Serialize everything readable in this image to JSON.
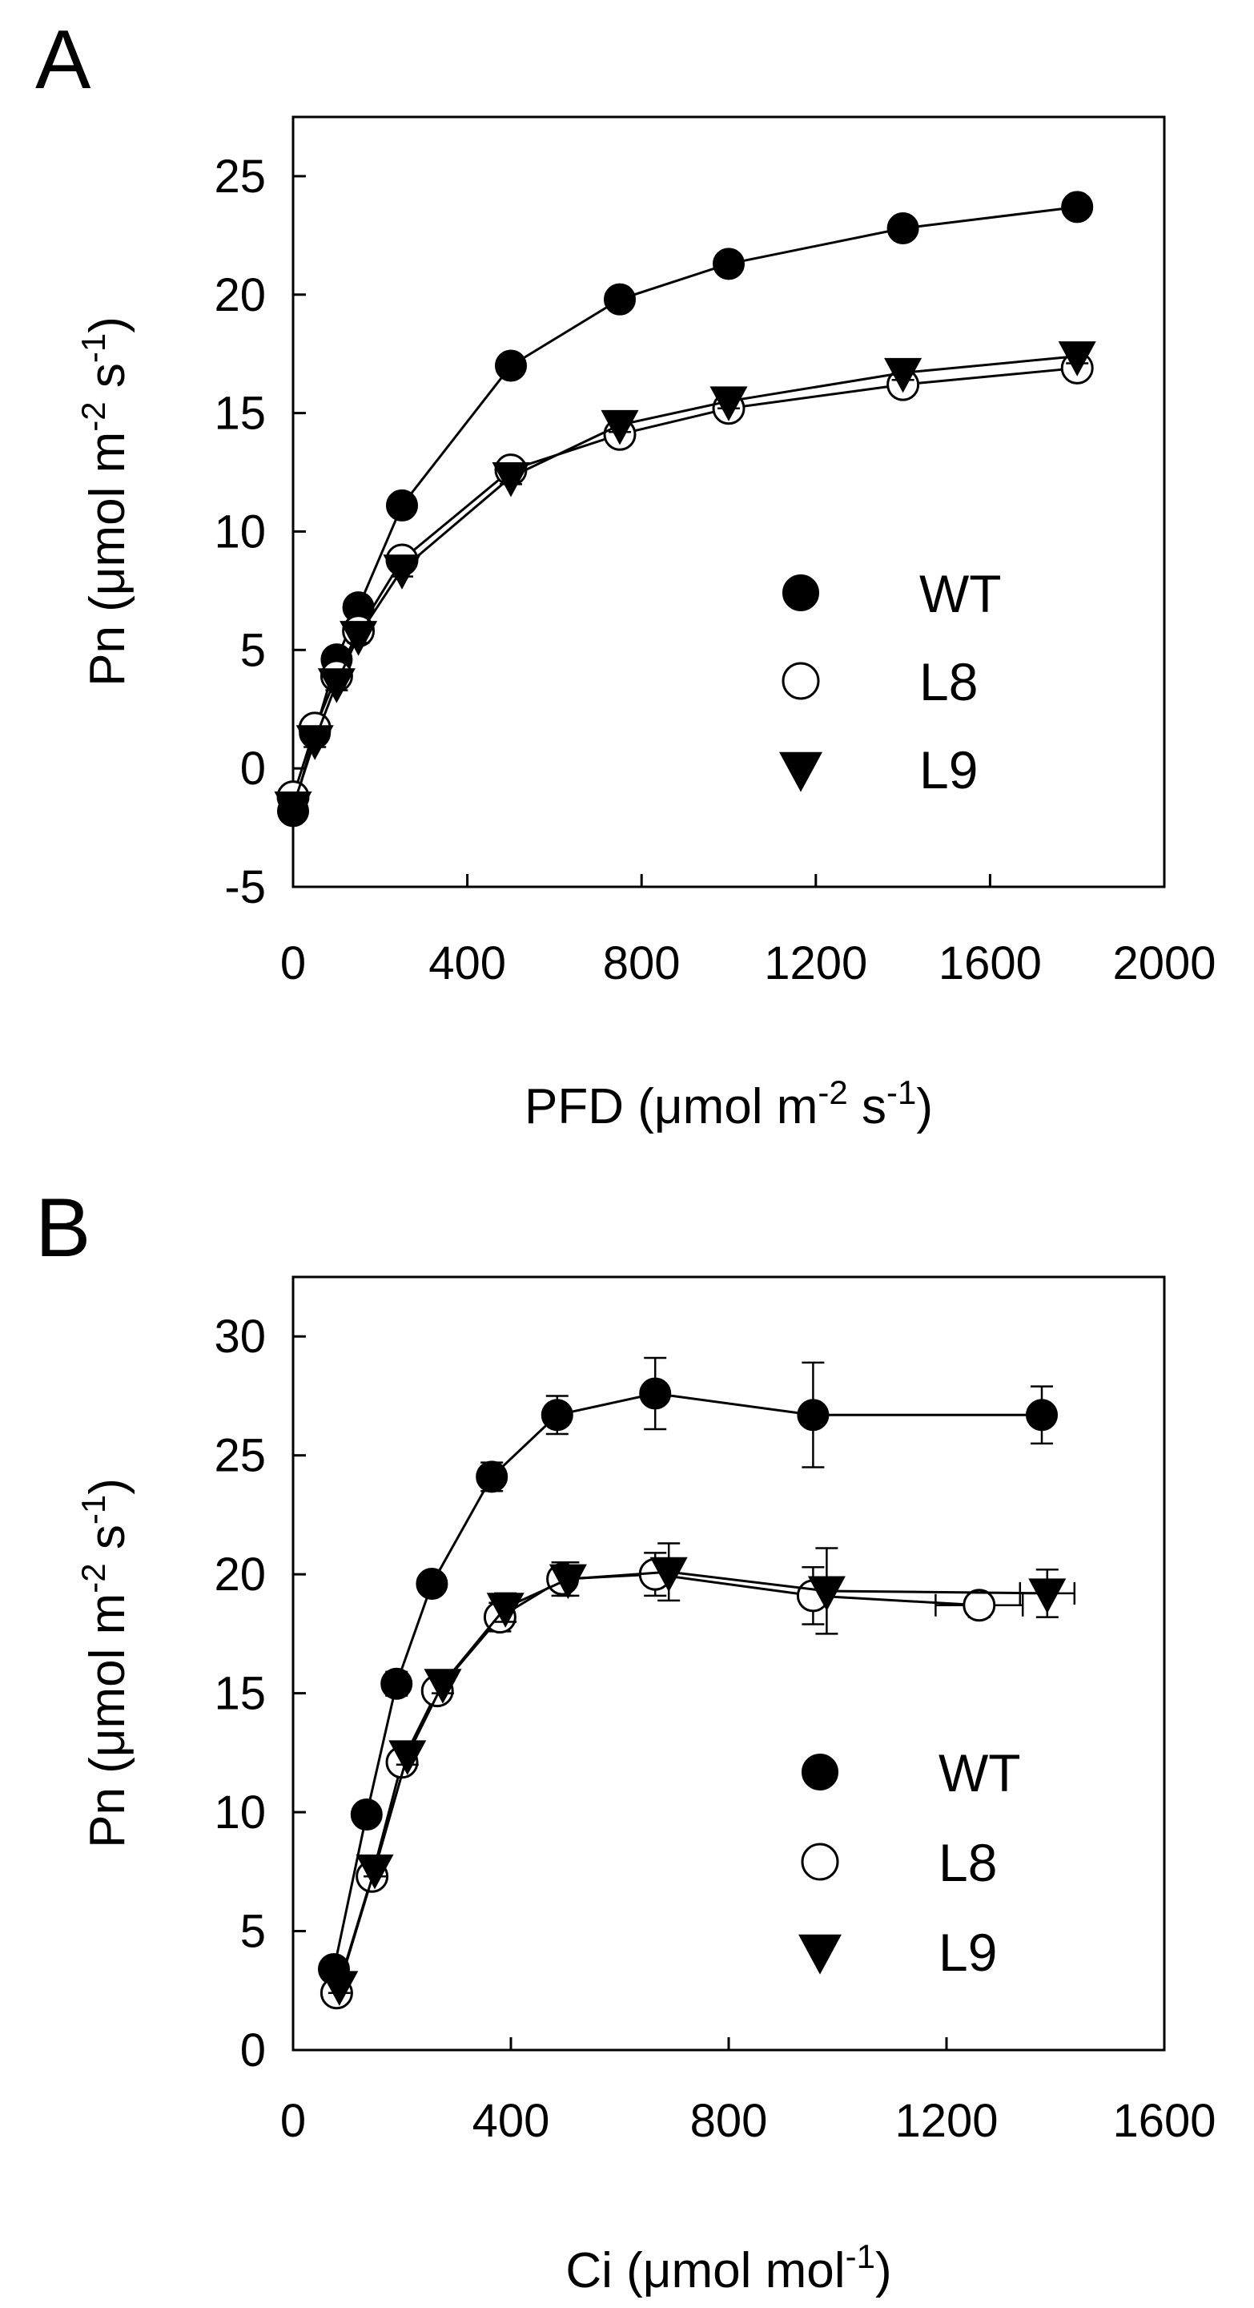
{
  "chart_data": [
    {
      "panel_label": "A",
      "type": "line",
      "xlabel": {
        "main": "PFD (μmol m",
        "sup1": "-2",
        "mid": " s",
        "sup2": "-1",
        "end": ")"
      },
      "ylabel": {
        "main": "Pn (μmol m",
        "sup1": "-2",
        "mid": " s",
        "sup2": "-1",
        "end": ")"
      },
      "xlim": [
        0,
        2000
      ],
      "ylim": [
        -5,
        27.5
      ],
      "xticks": [
        0,
        400,
        800,
        1200,
        1600,
        2000
      ],
      "yticks": [
        -5,
        0,
        5,
        10,
        15,
        20,
        25
      ],
      "xtick_labels": [
        "0",
        "400",
        "800",
        "1200",
        "1600",
        "2000"
      ],
      "ytick_labels": [
        "-5",
        "0",
        "5",
        "10",
        "15",
        "20",
        "25"
      ],
      "legend_position": "lower-right",
      "series": [
        {
          "name": "WT",
          "marker": "filled-circle",
          "x": [
            0,
            50,
            100,
            150,
            250,
            500,
            750,
            1000,
            1400,
            1800
          ],
          "y": [
            -1.8,
            1.5,
            4.6,
            6.8,
            11.1,
            17.0,
            19.8,
            21.3,
            22.8,
            23.7
          ],
          "err": [
            0.3,
            0.3,
            0.3,
            0.3,
            0.3,
            0.3,
            0.3,
            0.3,
            0.4,
            0.4
          ]
        },
        {
          "name": "L8",
          "marker": "open-circle",
          "x": [
            0,
            50,
            100,
            150,
            250,
            500,
            750,
            1000,
            1400,
            1800
          ],
          "y": [
            -1.2,
            1.7,
            3.9,
            5.8,
            8.8,
            12.6,
            14.1,
            15.2,
            16.2,
            16.9
          ],
          "err": [
            0.3,
            0.3,
            0.3,
            0.3,
            0.3,
            0.3,
            0.3,
            0.3,
            0.3,
            0.3
          ]
        },
        {
          "name": "L9",
          "marker": "filled-triangle-down",
          "x": [
            0,
            50,
            100,
            150,
            250,
            500,
            750,
            1000,
            1400,
            1800
          ],
          "y": [
            -1.6,
            1.2,
            3.6,
            5.6,
            8.4,
            12.3,
            14.5,
            15.5,
            16.7,
            17.4
          ],
          "err": [
            0.3,
            0.3,
            0.3,
            0.3,
            0.3,
            0.3,
            0.3,
            0.3,
            0.3,
            0.3
          ]
        }
      ]
    },
    {
      "panel_label": "B",
      "type": "line",
      "xlabel": {
        "main": "Ci (μmol mol",
        "sup1": "-1",
        "mid": "",
        "sup2": "",
        "end": ")"
      },
      "ylabel": {
        "main": "Pn (μmol m",
        "sup1": "-2",
        "mid": " s",
        "sup2": "-1",
        "end": ")"
      },
      "xlim": [
        0,
        1600
      ],
      "ylim": [
        0,
        32.5
      ],
      "xticks": [
        0,
        400,
        800,
        1200,
        1600
      ],
      "yticks": [
        0,
        5,
        10,
        15,
        20,
        25,
        30
      ],
      "xtick_labels": [
        "0",
        "400",
        "800",
        "1200",
        "1600"
      ],
      "ytick_labels": [
        "0",
        "5",
        "10",
        "15",
        "20",
        "25",
        "30"
      ],
      "legend_position": "lower-right",
      "series": [
        {
          "name": "WT",
          "marker": "filled-circle",
          "x": [
            75,
            135,
            190,
            255,
            365,
            485,
            665,
            955,
            1375
          ],
          "y": [
            3.4,
            9.9,
            15.4,
            19.6,
            24.1,
            26.7,
            27.6,
            26.7,
            26.7
          ],
          "err": [
            0.4,
            0.4,
            0.5,
            0.4,
            0.6,
            0.8,
            1.5,
            2.2,
            1.2
          ]
        },
        {
          "name": "L8",
          "marker": "open-circle",
          "x": [
            80,
            145,
            200,
            265,
            380,
            495,
            665,
            955,
            1260
          ],
          "y": [
            2.4,
            7.3,
            12.1,
            15.1,
            18.2,
            19.8,
            20.0,
            19.1,
            18.7
          ],
          "err": [
            0.3,
            0.3,
            0.4,
            0.4,
            0.6,
            0.7,
            0.9,
            1.2,
            0.5
          ],
          "xerr": [
            0,
            0,
            0,
            0,
            0,
            0,
            0,
            0,
            80
          ]
        },
        {
          "name": "L9",
          "marker": "filled-triangle-down",
          "x": [
            85,
            150,
            210,
            275,
            390,
            505,
            690,
            980,
            1385
          ],
          "y": [
            2.7,
            7.6,
            12.4,
            15.4,
            18.6,
            19.8,
            20.1,
            19.3,
            19.2
          ],
          "err": [
            0.3,
            0.3,
            0.4,
            0.4,
            0.6,
            0.7,
            1.2,
            1.8,
            1.0
          ],
          "xerr": [
            0,
            0,
            0,
            0,
            0,
            0,
            0,
            0,
            50
          ]
        }
      ]
    }
  ]
}
